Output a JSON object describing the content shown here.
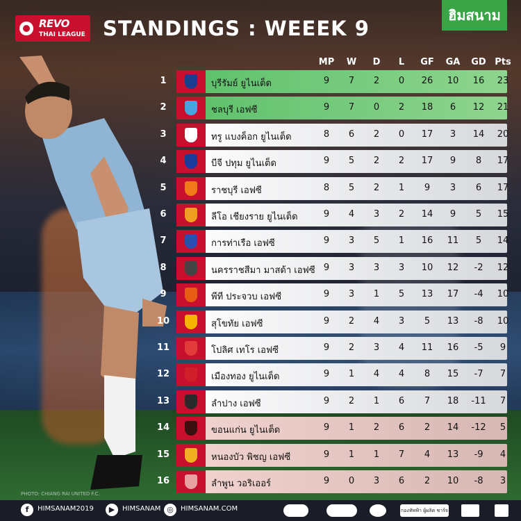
{
  "header": {
    "league_logo_line1": "REVO",
    "league_logo_line2": "THAI LEAGUE",
    "title": "STANDINGS : WEEEK 9",
    "brand": "ฮิมสนาม"
  },
  "columns": [
    "MP",
    "W",
    "D",
    "L",
    "GF",
    "GA",
    "GD",
    "Pts"
  ],
  "rows": [
    {
      "pos": "1",
      "team": "บุรีรัมย์ ยูไนเต็ด",
      "mp": "9",
      "w": "7",
      "d": "2",
      "l": "0",
      "gf": "26",
      "ga": "10",
      "gd": "16",
      "pts": "23",
      "zone": "green",
      "crest": "#1b3d8f"
    },
    {
      "pos": "2",
      "team": "ชลบุรี เอฟซี",
      "mp": "9",
      "w": "7",
      "d": "0",
      "l": "2",
      "gf": "18",
      "ga": "6",
      "gd": "12",
      "pts": "21",
      "zone": "green",
      "crest": "#4aa3df"
    },
    {
      "pos": "3",
      "team": "ทรู แบงค็อก ยูไนเต็ด",
      "mp": "8",
      "w": "6",
      "d": "2",
      "l": "0",
      "gf": "17",
      "ga": "3",
      "gd": "14",
      "pts": "20",
      "zone": "white",
      "crest": "#ffffff"
    },
    {
      "pos": "4",
      "team": "บีจี ปทุม ยูไนเต็ด",
      "mp": "9",
      "w": "5",
      "d": "2",
      "l": "2",
      "gf": "17",
      "ga": "9",
      "gd": "8",
      "pts": "17",
      "zone": "white",
      "crest": "#1a3a9c"
    },
    {
      "pos": "5",
      "team": "ราชบุรี เอฟซี",
      "mp": "8",
      "w": "5",
      "d": "2",
      "l": "1",
      "gf": "9",
      "ga": "3",
      "gd": "6",
      "pts": "17",
      "zone": "white",
      "crest": "#f07a1a"
    },
    {
      "pos": "6",
      "team": "ลีโอ เชียงราย ยูไนเต็ด",
      "mp": "9",
      "w": "4",
      "d": "3",
      "l": "2",
      "gf": "14",
      "ga": "9",
      "gd": "5",
      "pts": "15",
      "zone": "white",
      "crest": "#f0a020"
    },
    {
      "pos": "7",
      "team": "การท่าเรือ เอฟซี",
      "mp": "9",
      "w": "3",
      "d": "5",
      "l": "1",
      "gf": "16",
      "ga": "11",
      "gd": "5",
      "pts": "14",
      "zone": "white",
      "crest": "#2a4fb0"
    },
    {
      "pos": "8",
      "team": "นครราชสีมา มาสด้า เอฟซี",
      "mp": "9",
      "w": "3",
      "d": "3",
      "l": "3",
      "gf": "10",
      "ga": "12",
      "gd": "-2",
      "pts": "12",
      "zone": "white",
      "crest": "#444444"
    },
    {
      "pos": "9",
      "team": "พีที ประจวบ เอฟซี",
      "mp": "9",
      "w": "3",
      "d": "1",
      "l": "5",
      "gf": "13",
      "ga": "17",
      "gd": "-4",
      "pts": "10",
      "zone": "white",
      "crest": "#e85d14"
    },
    {
      "pos": "10",
      "team": "สุโขทัย เอฟซี",
      "mp": "9",
      "w": "2",
      "d": "4",
      "l": "3",
      "gf": "5",
      "ga": "13",
      "gd": "-8",
      "pts": "10",
      "zone": "white",
      "crest": "#f5b400"
    },
    {
      "pos": "11",
      "team": "โปลิศ เทโร เอฟซี",
      "mp": "9",
      "w": "2",
      "d": "3",
      "l": "4",
      "gf": "11",
      "ga": "16",
      "gd": "-5",
      "pts": "9",
      "zone": "white",
      "crest": "#e23b3b"
    },
    {
      "pos": "12",
      "team": "เมืองทอง ยูไนเต็ด",
      "mp": "9",
      "w": "1",
      "d": "4",
      "l": "4",
      "gf": "8",
      "ga": "15",
      "gd": "-7",
      "pts": "7",
      "zone": "white",
      "crest": "#d01f2a"
    },
    {
      "pos": "13",
      "team": "ลำปาง เอฟซี",
      "mp": "9",
      "w": "2",
      "d": "1",
      "l": "6",
      "gf": "7",
      "ga": "18",
      "gd": "-11",
      "pts": "7",
      "zone": "white",
      "crest": "#2a2a2a"
    },
    {
      "pos": "14",
      "team": "ขอนแก่น ยูไนเต็ด",
      "mp": "9",
      "w": "1",
      "d": "2",
      "l": "6",
      "gf": "2",
      "ga": "14",
      "gd": "-12",
      "pts": "5",
      "zone": "pink",
      "crest": "#3a1010"
    },
    {
      "pos": "15",
      "team": "หนองบัว พิชญ เอฟซี",
      "mp": "9",
      "w": "1",
      "d": "1",
      "l": "7",
      "gf": "4",
      "ga": "13",
      "gd": "-9",
      "pts": "4",
      "zone": "pink",
      "crest": "#f0b020"
    },
    {
      "pos": "16",
      "team": "ลำพูน วอริเออร์",
      "mp": "9",
      "w": "0",
      "d": "3",
      "l": "6",
      "gf": "2",
      "ga": "10",
      "gd": "-8",
      "pts": "3",
      "zone": "pink",
      "crest": "#e8a0a0"
    }
  ],
  "photo_credit": "PHOTO: CHIANG RAI UNITED F.C.",
  "footer": {
    "facebook": "HIMSANAM2019",
    "youtube": "HIMSANAM",
    "website": "HIMSANAM.COM",
    "sponsor_label": "กองทัพฟ้า ผู้ผลิต ชาร์จ"
  },
  "colors": {
    "green": "#5cc06a",
    "pink": "#f2d4d0",
    "crest_bg": "#c8102e",
    "brand": "#3aa546"
  }
}
